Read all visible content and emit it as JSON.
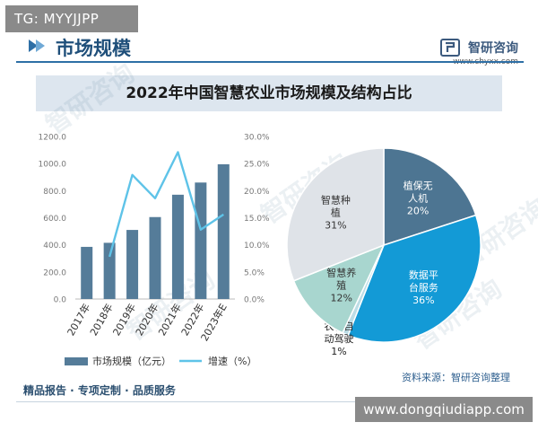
{
  "badges": {
    "top_left": "TG: MYYJJPP",
    "bottom_right": "www.dongqiudiapp.com"
  },
  "header": {
    "title": "市场规模",
    "brand_name": "智研咨询",
    "brand_url": "www.chyxx.com"
  },
  "footer": {
    "tagline": "精品报告 · 专项定制 · 品质服务",
    "source": "资料来源：智研咨询整理"
  },
  "watermark": "智研咨询",
  "colors": {
    "bar": "#557c99",
    "line": "#5ec3e8",
    "brand_blue": "#2e6fa6",
    "pie_smart_planting": "#dfe3e8",
    "pie_drone": "#4d7592",
    "pie_data_platform": "#139ad6",
    "pie_breeding": "#a8d6cf",
    "pie_autodrive": "#bcdde6"
  },
  "chart_data": [
    {
      "type": "bar",
      "title": "2022年中国智慧农业市场规模及结构占比",
      "categories": [
        "2017年",
        "2018年",
        "2019年",
        "2020年",
        "2021年",
        "2022年",
        "2023年E"
      ],
      "series": [
        {
          "name": "市场规模（亿元）",
          "axis": "left",
          "values": [
            385,
            415,
            510,
            605,
            770,
            860,
            995
          ]
        },
        {
          "name": "增速（%）",
          "type": "line",
          "axis": "right",
          "values": [
            null,
            7.8,
            22.9,
            18.6,
            27.1,
            12.8,
            15.6
          ]
        }
      ],
      "y_left": {
        "ticks": [
          "0.0",
          "200.0",
          "400.0",
          "600.0",
          "800.0",
          "1000.0",
          "1200.0"
        ],
        "ylim": [
          0,
          1200
        ]
      },
      "y_right": {
        "ticks": [
          "0.0%",
          "5.0%",
          "10.0%",
          "15.0%",
          "20.0%",
          "25.0%",
          "30.0%"
        ],
        "ylim": [
          0,
          30
        ]
      },
      "legend": {
        "placement": "bottom",
        "items": [
          "市场规模（亿元）",
          "增速（%）"
        ]
      },
      "grid": false
    },
    {
      "type": "pie",
      "slices": [
        {
          "label_lines": [
            "植保无",
            "人机"
          ],
          "pct_label": "20%",
          "value": 20
        },
        {
          "label_lines": [
            "数据平",
            "台服务"
          ],
          "pct_label": "36%",
          "value": 36
        },
        {
          "label_lines": [
            "农机自",
            "动驾驶"
          ],
          "pct_label": "1%",
          "value": 1
        },
        {
          "label_lines": [
            "智慧养",
            "殖"
          ],
          "pct_label": "12%",
          "value": 12
        },
        {
          "label_lines": [
            "智慧种",
            "植"
          ],
          "pct_label": "31%",
          "value": 31
        }
      ]
    }
  ]
}
